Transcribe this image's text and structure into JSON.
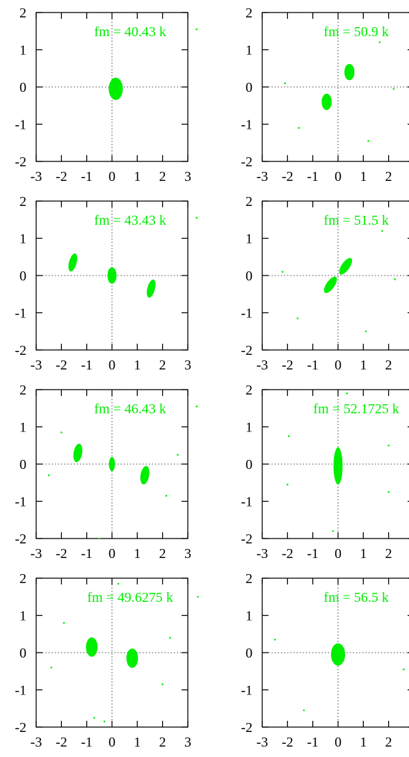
{
  "colors": {
    "marker": "#00ee00",
    "axis": "#000000"
  },
  "chart_data": [
    {
      "type": "scatter",
      "title": "fm = 40.43 k",
      "xlim": [
        -3,
        3
      ],
      "ylim": [
        -2,
        2
      ],
      "xticks": [
        "-3",
        "-2",
        "-1",
        "0",
        "1",
        "2",
        "3"
      ],
      "yticks": [
        "2",
        "1",
        "0",
        "-1",
        "-2"
      ],
      "grid": false,
      "clusters": [
        {
          "x": 0.15,
          "y": -0.05,
          "rx": 0.28,
          "ry": 0.3,
          "rotate": 0
        }
      ],
      "specks": [
        [
          3.35,
          1.55
        ]
      ]
    },
    {
      "type": "scatter",
      "title": "fm = 50.9 k",
      "xlim": [
        -3,
        3
      ],
      "ylim": [
        -2,
        2
      ],
      "xticks": [
        "-3",
        "-2",
        "-1",
        "0",
        "1",
        "2",
        "3"
      ],
      "yticks": [
        "2",
        "1",
        "0",
        "-1",
        "-2"
      ],
      "grid": false,
      "clusters": [
        {
          "x": 0.45,
          "y": 0.4,
          "rx": 0.2,
          "ry": 0.22,
          "rotate": 0
        },
        {
          "x": -0.45,
          "y": -0.4,
          "rx": 0.2,
          "ry": 0.22,
          "rotate": 0
        }
      ],
      "specks": [
        [
          -2.1,
          0.1
        ],
        [
          2.2,
          -0.05
        ],
        [
          -1.55,
          -1.1
        ],
        [
          1.2,
          -1.45
        ],
        [
          1.65,
          1.2
        ]
      ]
    },
    {
      "type": "scatter",
      "title": "fm = 43.43 k",
      "xlim": [
        -3,
        3
      ],
      "ylim": [
        -2,
        2
      ],
      "xticks": [
        "-3",
        "-2",
        "-1",
        "0",
        "1",
        "2",
        "3"
      ],
      "yticks": [
        "2",
        "1",
        "0",
        "-1",
        "-2"
      ],
      "grid": false,
      "clusters": [
        {
          "x": -1.55,
          "y": 0.35,
          "rx": 0.15,
          "ry": 0.25,
          "rotate": 15
        },
        {
          "x": 0.0,
          "y": 0.0,
          "rx": 0.18,
          "ry": 0.22,
          "rotate": 0
        },
        {
          "x": 1.55,
          "y": -0.35,
          "rx": 0.15,
          "ry": 0.25,
          "rotate": 15
        }
      ],
      "specks": [
        [
          3.35,
          1.55
        ]
      ]
    },
    {
      "type": "scatter",
      "title": "fm = 51.5 k",
      "xlim": [
        -3,
        3
      ],
      "ylim": [
        -2,
        2
      ],
      "xticks": [
        "-3",
        "-2",
        "-1",
        "0",
        "1",
        "2",
        "3"
      ],
      "yticks": [
        "2",
        "1",
        "0",
        "-1",
        "-2"
      ],
      "grid": false,
      "clusters": [
        {
          "x": 0.3,
          "y": 0.25,
          "rx": 0.16,
          "ry": 0.26,
          "rotate": 35
        },
        {
          "x": -0.3,
          "y": -0.25,
          "rx": 0.16,
          "ry": 0.26,
          "rotate": 35
        }
      ],
      "specks": [
        [
          -2.2,
          0.1
        ],
        [
          2.25,
          -0.1
        ],
        [
          -1.6,
          -1.15
        ],
        [
          1.1,
          -1.5
        ],
        [
          1.75,
          1.2
        ]
      ]
    },
    {
      "type": "scatter",
      "title": "fm = 46.43 k",
      "xlim": [
        -3,
        3
      ],
      "ylim": [
        -2,
        2
      ],
      "xticks": [
        "-3",
        "-2",
        "-1",
        "0",
        "1",
        "2",
        "3"
      ],
      "yticks": [
        "2",
        "1",
        "0",
        "-1",
        "-2"
      ],
      "grid": false,
      "clusters": [
        {
          "x": -1.35,
          "y": 0.3,
          "rx": 0.17,
          "ry": 0.25,
          "rotate": 10
        },
        {
          "x": 0.0,
          "y": 0.0,
          "rx": 0.12,
          "ry": 0.19,
          "rotate": 0
        },
        {
          "x": 1.3,
          "y": -0.3,
          "rx": 0.17,
          "ry": 0.25,
          "rotate": 10
        }
      ],
      "specks": [
        [
          -2.0,
          0.85
        ],
        [
          -2.5,
          -0.3
        ],
        [
          2.6,
          0.25
        ],
        [
          2.15,
          -0.85
        ],
        [
          -0.5,
          -2.0
        ],
        [
          3.35,
          1.55
        ]
      ]
    },
    {
      "type": "scatter",
      "title": "fm = 52.1725 k",
      "xlim": [
        -3,
        3
      ],
      "ylim": [
        -2,
        2
      ],
      "xticks": [
        "-3",
        "-2",
        "-1",
        "0",
        "1",
        "2",
        "3"
      ],
      "yticks": [
        "2",
        "1",
        "0",
        "-1",
        "-2"
      ],
      "grid": false,
      "clusters": [
        {
          "x": 0.0,
          "y": -0.05,
          "rx": 0.18,
          "ry": 0.5,
          "rotate": 0
        }
      ],
      "specks": [
        [
          -1.95,
          0.75
        ],
        [
          -2.0,
          -0.55
        ],
        [
          2.0,
          0.5
        ],
        [
          2.0,
          -0.75
        ],
        [
          -0.2,
          -1.8
        ],
        [
          0.35,
          1.9
        ]
      ]
    },
    {
      "type": "scatter",
      "title": "fm = 49.6275 k",
      "xlim": [
        -3,
        3
      ],
      "ylim": [
        -2,
        2
      ],
      "xticks": [
        "-3",
        "-2",
        "-1",
        "0",
        "1",
        "2",
        "3"
      ],
      "yticks": [
        "2",
        "1",
        "0",
        "-1",
        "-2"
      ],
      "grid": false,
      "clusters": [
        {
          "x": -0.8,
          "y": 0.15,
          "rx": 0.23,
          "ry": 0.26,
          "rotate": 0
        },
        {
          "x": 0.8,
          "y": -0.15,
          "rx": 0.23,
          "ry": 0.26,
          "rotate": 0
        }
      ],
      "specks": [
        [
          -1.9,
          0.8
        ],
        [
          -2.4,
          -0.4
        ],
        [
          2.3,
          0.4
        ],
        [
          2.0,
          -0.85
        ],
        [
          -0.7,
          -1.75
        ],
        [
          -0.3,
          -1.85
        ],
        [
          0.25,
          1.85
        ],
        [
          3.4,
          1.5
        ]
      ]
    },
    {
      "type": "scatter",
      "title": "fm = 56.5 k",
      "xlim": [
        -3,
        3
      ],
      "ylim": [
        -2,
        2
      ],
      "xticks": [
        "-3",
        "-2",
        "-1",
        "0",
        "1",
        "2",
        "3"
      ],
      "yticks": [
        "2",
        "1",
        "0",
        "-1",
        "-2"
      ],
      "grid": false,
      "clusters": [
        {
          "x": 0.0,
          "y": -0.05,
          "rx": 0.28,
          "ry": 0.3,
          "rotate": 0
        }
      ],
      "specks": [
        [
          -2.5,
          0.35
        ],
        [
          2.6,
          -0.45
        ],
        [
          -1.35,
          -1.55
        ]
      ]
    }
  ]
}
